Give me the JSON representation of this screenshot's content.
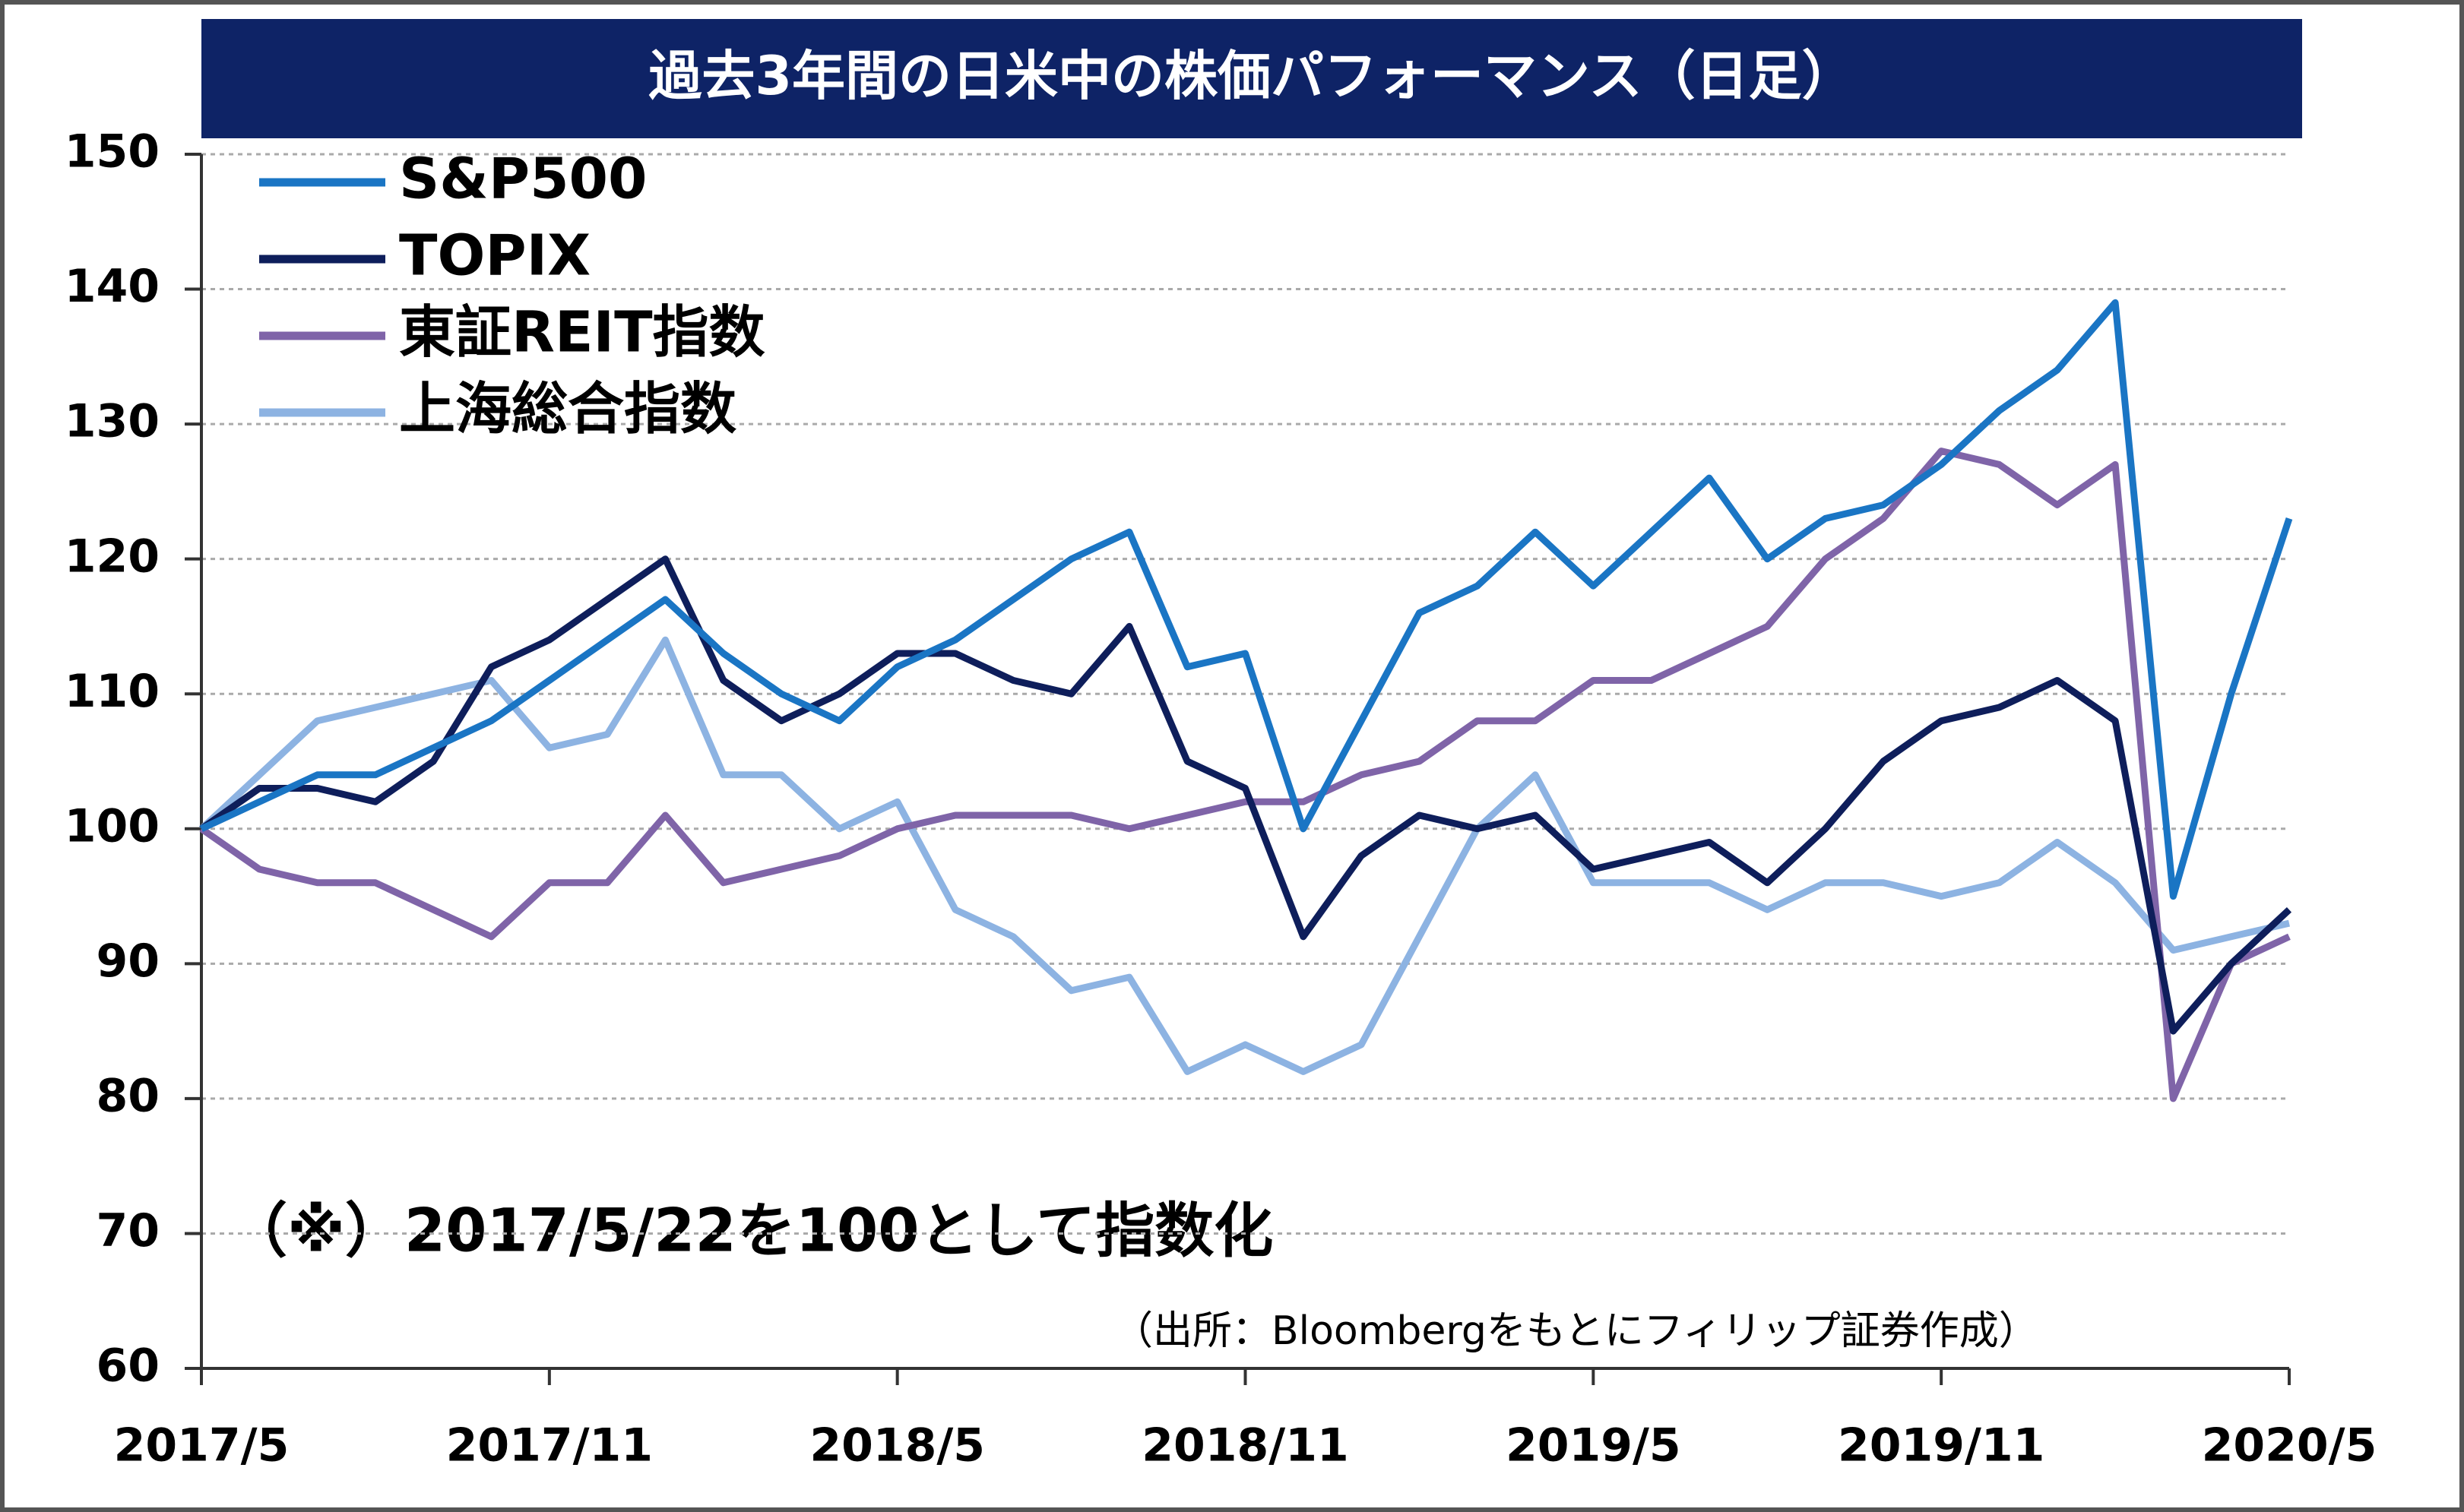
{
  "chart_data": {
    "type": "line",
    "title": "過去3年間の日米中の株価パフォーマンス（日足）",
    "annotation": "（※）2017/5/22を100として指数化",
    "source": "（出所：Bloombergをもとにフィリップ証券作成）",
    "x": [
      "2017/5",
      "2017/6",
      "2017/7",
      "2017/8",
      "2017/9",
      "2017/10",
      "2017/11",
      "2017/12",
      "2018/1",
      "2018/2",
      "2018/3",
      "2018/4",
      "2018/5",
      "2018/6",
      "2018/7",
      "2018/8",
      "2018/9",
      "2018/10",
      "2018/11",
      "2018/12",
      "2019/1",
      "2019/2",
      "2019/3",
      "2019/4",
      "2019/5",
      "2019/6",
      "2019/7",
      "2019/8",
      "2019/9",
      "2019/10",
      "2019/11",
      "2019/12",
      "2020/1",
      "2020/2",
      "2020/3",
      "2020/4",
      "2020/5"
    ],
    "series": [
      {
        "name": "S&P500",
        "color": "#1a75c4",
        "values": [
          100,
          102,
          104,
          104,
          106,
          108,
          111,
          114,
          117,
          113,
          110,
          108,
          112,
          114,
          117,
          120,
          122,
          112,
          113,
          100,
          108,
          116,
          118,
          122,
          118,
          122,
          126,
          120,
          123,
          124,
          127,
          131,
          134,
          139,
          95,
          110,
          123
        ]
      },
      {
        "name": "TOPIX",
        "color": "#0e1e5b",
        "values": [
          100,
          103,
          103,
          102,
          105,
          112,
          114,
          117,
          120,
          111,
          108,
          110,
          113,
          113,
          111,
          110,
          115,
          105,
          103,
          92,
          98,
          101,
          100,
          101,
          97,
          98,
          99,
          96,
          100,
          105,
          108,
          109,
          111,
          108,
          85,
          90,
          94
        ]
      },
      {
        "name": "東証REIT指数",
        "color": "#7f64a8",
        "values": [
          100,
          97,
          96,
          96,
          94,
          92,
          96,
          96,
          101,
          96,
          97,
          98,
          100,
          101,
          101,
          101,
          100,
          101,
          102,
          102,
          104,
          105,
          108,
          108,
          111,
          111,
          113,
          115,
          120,
          123,
          128,
          127,
          124,
          127,
          80,
          90,
          92
        ]
      },
      {
        "name": "上海総合指数",
        "color": "#8db3e2",
        "values": [
          100,
          104,
          108,
          109,
          110,
          111,
          106,
          107,
          114,
          104,
          104,
          100,
          102,
          94,
          92,
          88,
          89,
          82,
          84,
          82,
          84,
          92,
          100,
          104,
          96,
          96,
          96,
          94,
          96,
          96,
          95,
          96,
          99,
          96,
          91,
          92,
          93
        ]
      }
    ],
    "ylim": [
      60,
      150
    ],
    "yticks": [
      60,
      70,
      80,
      90,
      100,
      110,
      120,
      130,
      140,
      150
    ],
    "xticks": [
      "2017/5",
      "2017/11",
      "2018/5",
      "2018/11",
      "2019/5",
      "2019/11",
      "2020/5"
    ],
    "grid": true,
    "legend": "upper left"
  }
}
